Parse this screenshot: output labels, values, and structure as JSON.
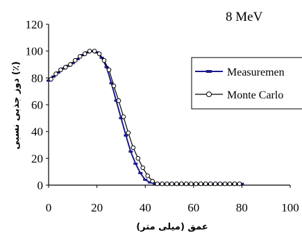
{
  "chart_data": {
    "type": "line",
    "title": "8 MeV",
    "xlabel": "عمق (میلی متر)",
    "ylabel": "دوز جذبی نسبی (٪)",
    "xlim": [
      0,
      100
    ],
    "ylim": [
      0,
      120
    ],
    "x_ticks": [
      0,
      20,
      40,
      60,
      80,
      100
    ],
    "y_ticks": [
      0,
      20,
      40,
      60,
      80,
      100,
      120
    ],
    "grid": false,
    "legend_position": "right",
    "series": [
      {
        "name": "Measurement",
        "color": "#1a1a8c",
        "marker": "dash",
        "x": [
          0,
          2,
          4,
          6,
          8,
          10,
          12,
          14,
          16,
          18,
          20,
          22,
          24,
          26,
          28,
          30,
          32,
          34,
          36,
          38,
          40,
          42,
          44,
          46,
          48,
          50,
          52,
          54,
          56,
          58,
          60,
          62,
          64,
          66,
          68,
          70,
          72,
          74,
          76,
          78,
          80
        ],
        "y": [
          78,
          81,
          84,
          87,
          89,
          91,
          94,
          97,
          99,
          100,
          99,
          95,
          88,
          76,
          63,
          50,
          37,
          25,
          16,
          9,
          4,
          2,
          1,
          1,
          1,
          1,
          1,
          1,
          1,
          1,
          1,
          1,
          1,
          1,
          1,
          1,
          1,
          1,
          1,
          1,
          1
        ]
      },
      {
        "name": "Monte Carlo",
        "color": "#000000",
        "marker": "circle",
        "x": [
          1,
          3,
          5,
          7,
          9,
          11,
          13,
          15,
          17,
          19,
          21,
          23,
          25,
          27,
          29,
          31,
          33,
          35,
          37,
          39,
          41,
          43,
          45,
          47,
          49,
          51,
          53,
          55,
          57,
          59,
          61,
          63,
          65,
          67,
          69,
          71,
          73,
          75,
          77,
          79
        ],
        "y": [
          79,
          83,
          86,
          88,
          90,
          93,
          96,
          98,
          100,
          100,
          98,
          93,
          86,
          74,
          63,
          51,
          39,
          28,
          20,
          13,
          7,
          3,
          1,
          1,
          1,
          1,
          1,
          1,
          1,
          1,
          1,
          1,
          1,
          1,
          1,
          1,
          1,
          1,
          1,
          1
        ]
      }
    ],
    "legend_labels": [
      "Measuremen",
      "Monte Carlo"
    ]
  }
}
